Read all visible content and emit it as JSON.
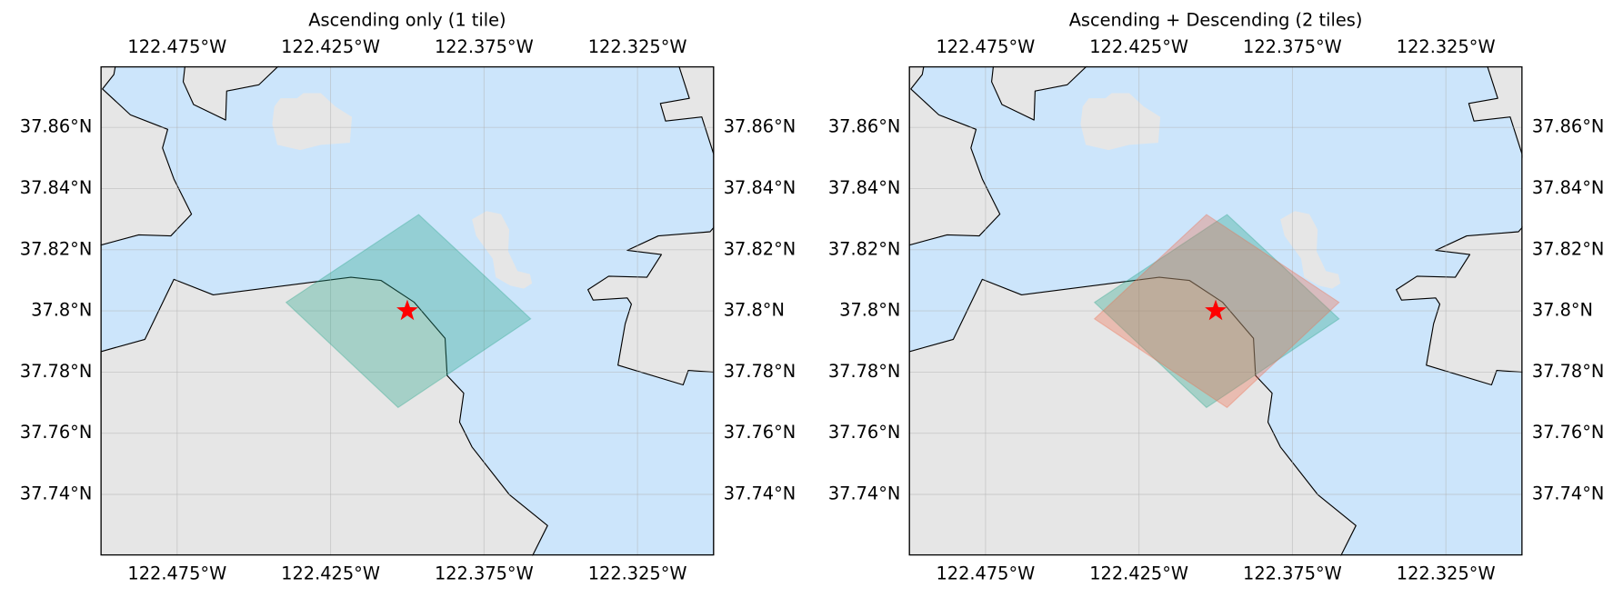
{
  "chart_data": [
    {
      "type": "map",
      "title": "Ascending only (1 tile)",
      "xlim": [
        -122.5,
        -122.3
      ],
      "ylim": [
        37.72,
        37.88
      ],
      "xticks": [
        {
          "value": -122.475,
          "label": "122.475°W"
        },
        {
          "value": -122.425,
          "label": "122.425°W"
        },
        {
          "value": -122.375,
          "label": "122.375°W"
        },
        {
          "value": -122.325,
          "label": "122.325°W"
        }
      ],
      "yticks": [
        {
          "value": 37.74,
          "label": "37.74°N"
        },
        {
          "value": 37.76,
          "label": "37.76°N"
        },
        {
          "value": 37.78,
          "label": "37.78°N"
        },
        {
          "value": 37.8,
          "label": "37.8°N"
        },
        {
          "value": 37.82,
          "label": "37.82°N"
        },
        {
          "value": 37.84,
          "label": "37.84°N"
        },
        {
          "value": 37.86,
          "label": "37.86°N"
        }
      ],
      "grid": true,
      "polygons": [
        {
          "color": "#2ca58d",
          "alpha": 0.35,
          "x": [
            -122.4395,
            -122.3963,
            -122.3598,
            -122.403
          ],
          "y": [
            37.8028,
            37.8315,
            37.7974,
            37.7684
          ]
        }
      ],
      "points": {
        "color": "#ff0000",
        "marker": "star",
        "x": [
          -122.4
        ],
        "y": [
          37.8
        ]
      }
    },
    {
      "type": "map",
      "title": "Ascending + Descending (2 tiles)",
      "xlim": [
        -122.5,
        -122.3
      ],
      "ylim": [
        37.72,
        37.88
      ],
      "xticks": [
        {
          "value": -122.475,
          "label": "122.475°W"
        },
        {
          "value": -122.425,
          "label": "122.425°W"
        },
        {
          "value": -122.375,
          "label": "122.375°W"
        },
        {
          "value": -122.325,
          "label": "122.325°W"
        }
      ],
      "yticks": [
        {
          "value": 37.74,
          "label": "37.74°N"
        },
        {
          "value": 37.76,
          "label": "37.76°N"
        },
        {
          "value": 37.78,
          "label": "37.78°N"
        },
        {
          "value": 37.8,
          "label": "37.8°N"
        },
        {
          "value": 37.82,
          "label": "37.82°N"
        },
        {
          "value": 37.84,
          "label": "37.84°N"
        },
        {
          "value": 37.86,
          "label": "37.86°N"
        }
      ],
      "grid": true,
      "polygons": [
        {
          "color": "#2ca58d",
          "alpha": 0.35,
          "x": [
            -122.4395,
            -122.3963,
            -122.3598,
            -122.403
          ],
          "y": [
            37.8028,
            37.8315,
            37.7974,
            37.7684
          ]
        },
        {
          "color": "#ee6e4e",
          "alpha": 0.35,
          "x": [
            -122.4395,
            -122.403,
            -122.3598,
            -122.3963
          ],
          "y": [
            37.7974,
            37.8315,
            37.8028,
            37.7684
          ]
        }
      ],
      "points": {
        "color": "#ff0000",
        "marker": "star",
        "x": [
          -122.4
        ],
        "y": [
          37.8
        ]
      }
    }
  ]
}
